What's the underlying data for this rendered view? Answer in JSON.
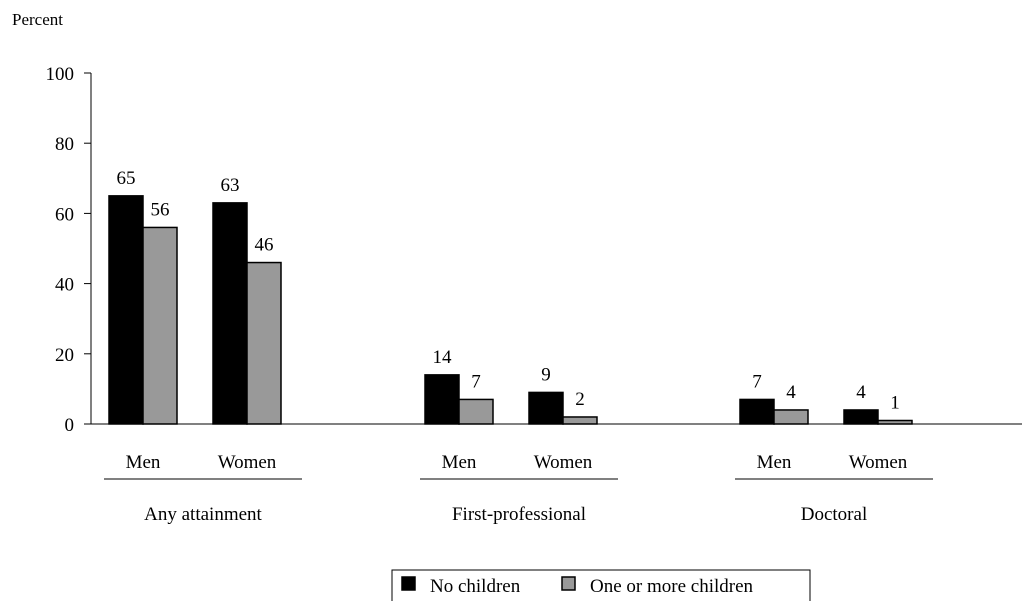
{
  "chart_data": {
    "type": "bar",
    "ylabel": "Percent",
    "ylim": [
      0,
      100
    ],
    "yticks": [
      0,
      20,
      40,
      60,
      80,
      100
    ],
    "grid": false,
    "legend_position": "bottom-center",
    "groups": [
      {
        "label": "Any attainment",
        "subcategories": [
          {
            "label": "Men",
            "values": [
              65,
              56
            ]
          },
          {
            "label": "Women",
            "values": [
              63,
              46
            ]
          }
        ]
      },
      {
        "label": "First-professional",
        "subcategories": [
          {
            "label": "Men",
            "values": [
              14,
              7
            ]
          },
          {
            "label": "Women",
            "values": [
              9,
              2
            ]
          }
        ]
      },
      {
        "label": "Doctoral",
        "subcategories": [
          {
            "label": "Men",
            "values": [
              7,
              4
            ]
          },
          {
            "label": "Women",
            "values": [
              4,
              1
            ]
          }
        ]
      }
    ],
    "series": [
      {
        "name": "No children",
        "color": "#000000"
      },
      {
        "name": "One or more children",
        "color": "#999999"
      }
    ]
  }
}
